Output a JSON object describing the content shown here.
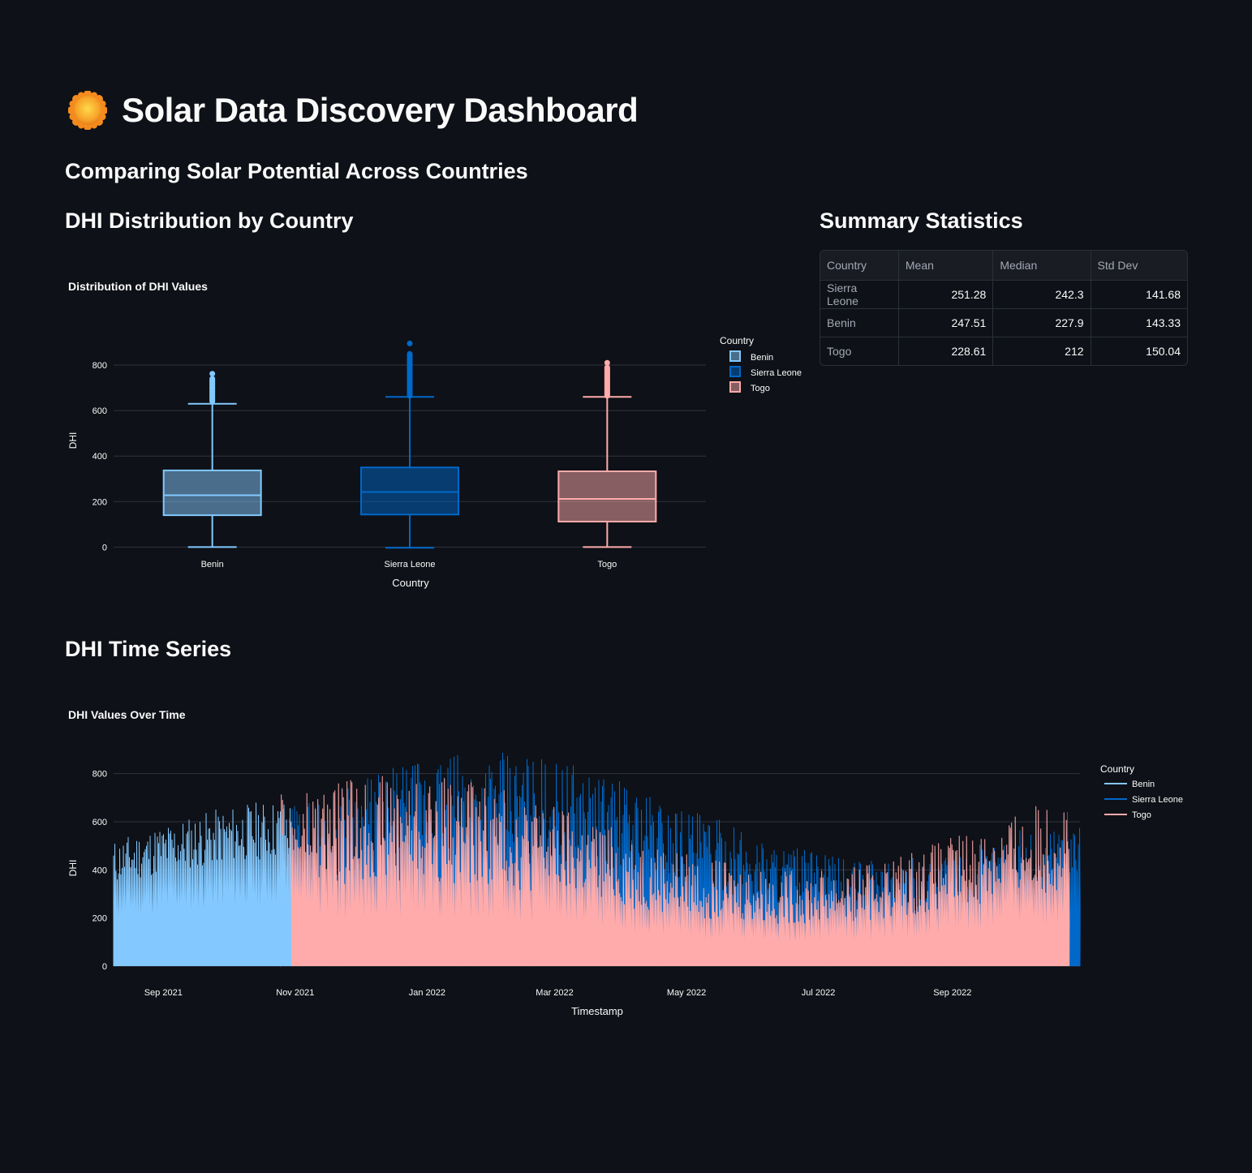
{
  "header": {
    "title": "Solar Data Discovery Dashboard",
    "icon": "sun-icon",
    "subtitle": "Comparing Solar Potential Across Countries"
  },
  "sections": {
    "box": "DHI Distribution by Country",
    "stats": "Summary Statistics",
    "timeseries": "DHI Time Series"
  },
  "colors": {
    "Benin": "#83c9ff",
    "Sierra Leone": "#0068c9",
    "Togo": "#ffabab",
    "background": "#0e1117",
    "grid": "#31333f"
  },
  "stats_table": {
    "columns": [
      "Country",
      "Mean",
      "Median",
      "Std Dev"
    ],
    "rows": [
      [
        "Sierra Leone",
        "251.28",
        "242.3",
        "141.68"
      ],
      [
        "Benin",
        "247.51",
        "227.9",
        "143.33"
      ],
      [
        "Togo",
        "228.61",
        "212",
        "150.04"
      ]
    ]
  },
  "chart_data": [
    {
      "type": "box",
      "title": "Distribution of DHI Values",
      "xlabel": "Country",
      "ylabel": "DHI",
      "ylim": [
        -20,
        900
      ],
      "yticks": [
        0,
        200,
        400,
        600,
        800
      ],
      "legend_title": "Country",
      "legend_position": "top-right",
      "categories": [
        "Benin",
        "Sierra Leone",
        "Togo"
      ],
      "series": [
        {
          "name": "Benin",
          "min": 0,
          "q1": 140,
          "median": 228,
          "q3": 337,
          "upper_fence": 630,
          "outliers": [
            640,
            665,
            690,
            715,
            740,
            762
          ]
        },
        {
          "name": "Sierra Leone",
          "min": -3,
          "q1": 143,
          "median": 242,
          "q3": 350,
          "upper_fence": 660,
          "outliers": [
            665,
            700,
            740,
            775,
            810,
            850,
            895
          ]
        },
        {
          "name": "Togo",
          "min": 0,
          "q1": 112,
          "median": 212,
          "q3": 333,
          "upper_fence": 660,
          "outliers": [
            665,
            700,
            730,
            760,
            790,
            810
          ]
        }
      ]
    },
    {
      "type": "line",
      "title": "DHI Values Over Time",
      "xlabel": "Timestamp",
      "ylabel": "DHI",
      "ylim": [
        0,
        900
      ],
      "yticks": [
        0,
        200,
        400,
        600,
        800
      ],
      "xticks": [
        "Sep 2021",
        "Nov 2021",
        "Jan 2022",
        "Mar 2022",
        "May 2022",
        "Jul 2022",
        "Sep 2022"
      ],
      "x_range": [
        "2021-08-09",
        "2022-10-30"
      ],
      "legend_title": "Country",
      "legend_position": "top-right",
      "series": [
        {
          "name": "Benin",
          "start": "2021-08-09",
          "end": "2022-08-08",
          "typical_peak": [
            450,
            700
          ]
        },
        {
          "name": "Sierra Leone",
          "start": "2021-10-30",
          "end": "2022-10-30",
          "typical_peak": [
            450,
            890
          ]
        },
        {
          "name": "Togo",
          "start": "2021-10-25",
          "end": "2022-10-25",
          "typical_peak": [
            350,
            800
          ]
        }
      ]
    }
  ]
}
